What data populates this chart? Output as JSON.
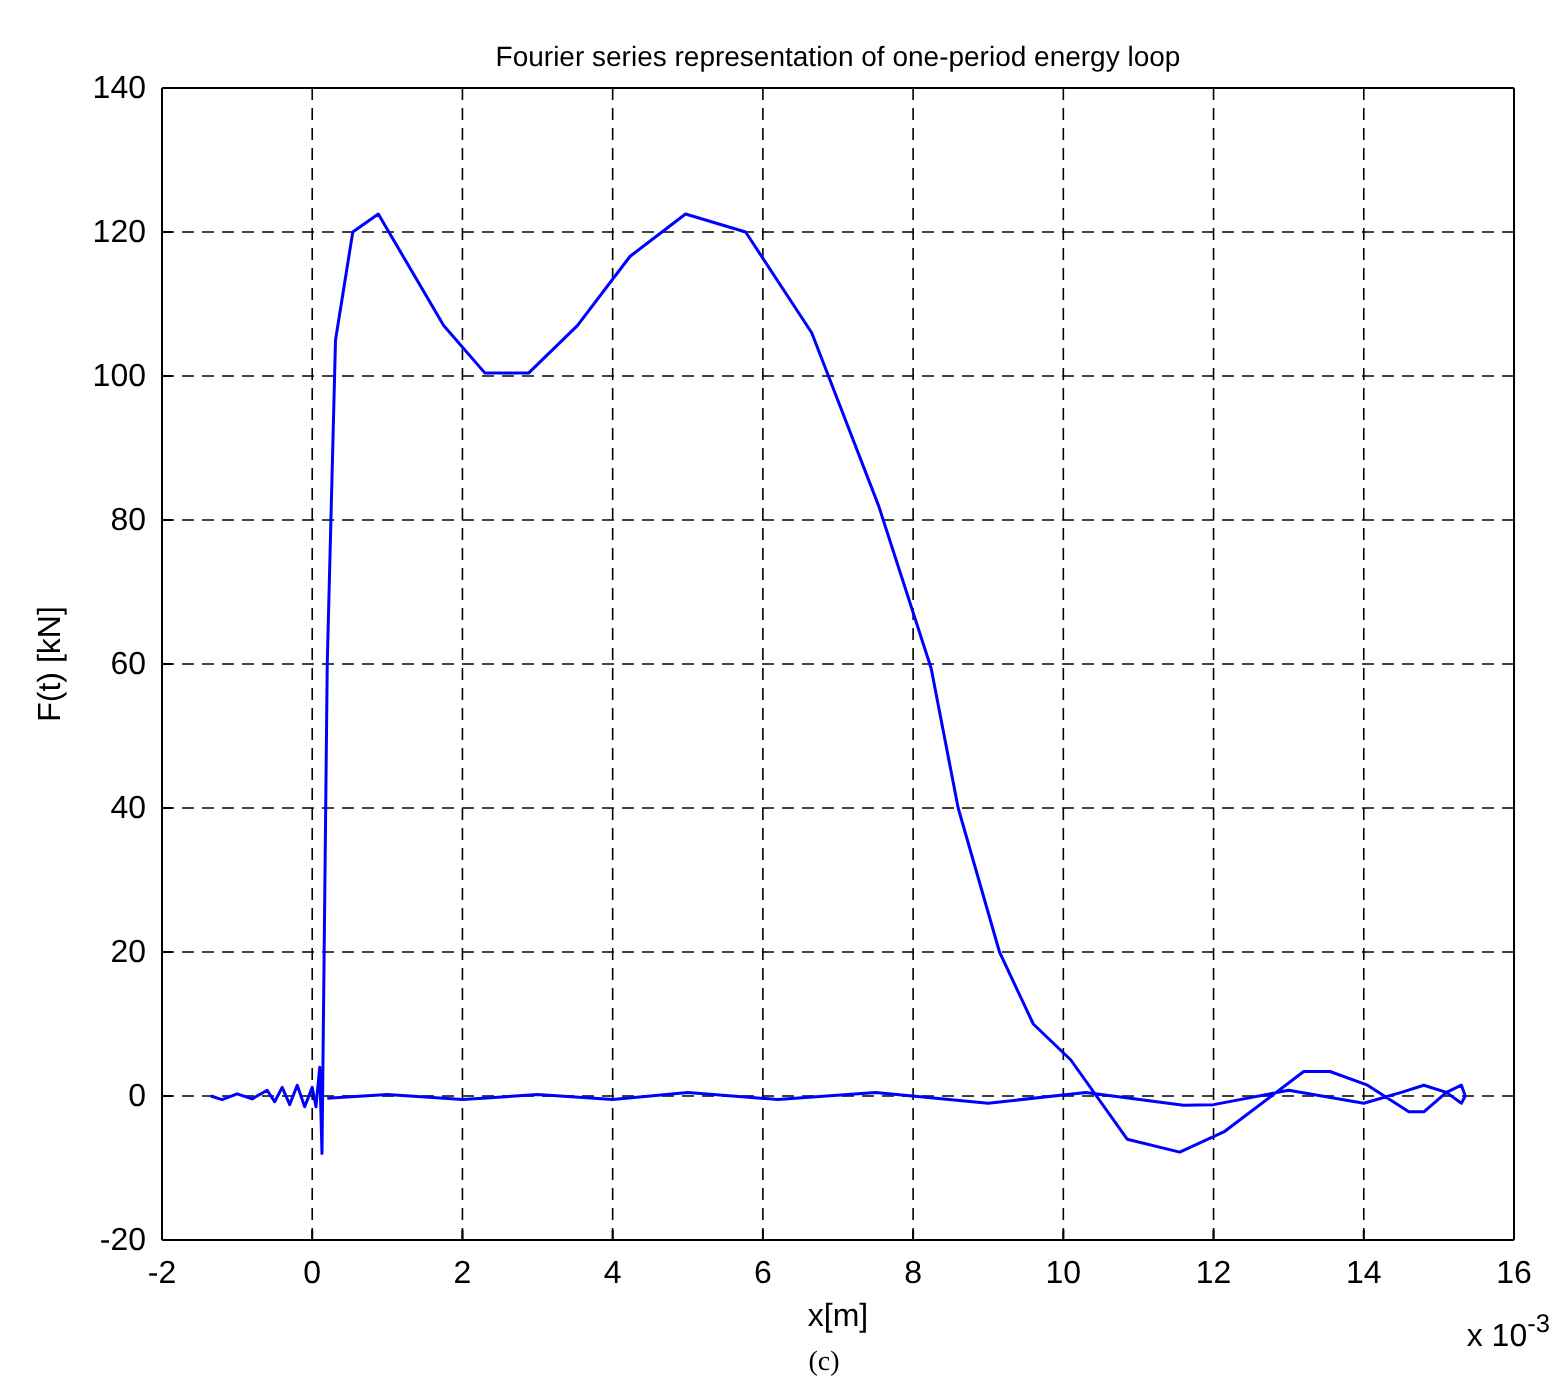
{
  "chart_data": {
    "type": "line",
    "title": "Fourier series representation of one-period energy loop",
    "xlabel": "x[m]",
    "ylabel": "F(t) [kN]",
    "annotations": [
      "x 10$^{-3}$",
      "(c)"
    ],
    "xlim": [
      -2,
      16
    ],
    "xticks": [
      -2,
      0,
      2,
      4,
      6,
      8,
      10,
      12,
      14,
      16
    ],
    "ylim": [
      -20,
      140
    ],
    "yticks": [
      -20,
      0,
      20,
      40,
      60,
      80,
      100,
      120,
      140
    ],
    "grid": true,
    "marker": "none",
    "line_style": "solid",
    "series": [
      {
        "color": "#0000ff",
        "x": [
          -1.35,
          -1.2,
          -1.0,
          -0.8,
          -0.6,
          -0.5,
          -0.4,
          -0.3,
          -0.2,
          -0.1,
          0.0,
          0.05,
          0.1,
          0.13,
          0.2,
          0.31,
          0.54,
          0.88,
          1.75,
          2.3,
          2.88,
          3.53,
          4.23,
          4.97,
          5.77,
          6.65,
          7.54,
          8.24,
          8.6,
          9.15,
          9.6,
          10.1,
          10.85,
          11.55,
          12.15,
          13.2,
          13.55,
          14.05,
          14.6,
          14.8,
          15.1,
          15.3,
          15.35,
          15.3,
          15.1,
          14.8,
          14.5,
          14.0,
          13.0,
          12.0,
          11.6,
          10.3,
          9.0,
          7.5,
          6.2,
          5.0,
          4.0,
          3.0,
          2.0,
          1.0,
          0.2
        ],
        "values": [
          0,
          -0.5,
          0.3,
          -0.4,
          0.8,
          -0.8,
          1.2,
          -1.2,
          1.5,
          -1.5,
          1.2,
          -1.5,
          4,
          -8,
          60,
          105,
          120,
          122.5,
          107,
          100.4,
          100.4,
          107,
          116.6,
          122.5,
          120,
          106,
          82,
          59.4,
          40,
          20,
          10,
          5,
          -6,
          -7.8,
          -4.9,
          3.4,
          3.4,
          1.5,
          -2.2,
          -2.2,
          0.5,
          1.5,
          0,
          -1,
          0.5,
          1.5,
          0.5,
          -1,
          0.8,
          -1.2,
          -1.3,
          0.5,
          -1,
          0.5,
          -0.5,
          0.5,
          -0.5,
          0.2,
          -0.5,
          0.2,
          -0.3
        ]
      }
    ]
  }
}
